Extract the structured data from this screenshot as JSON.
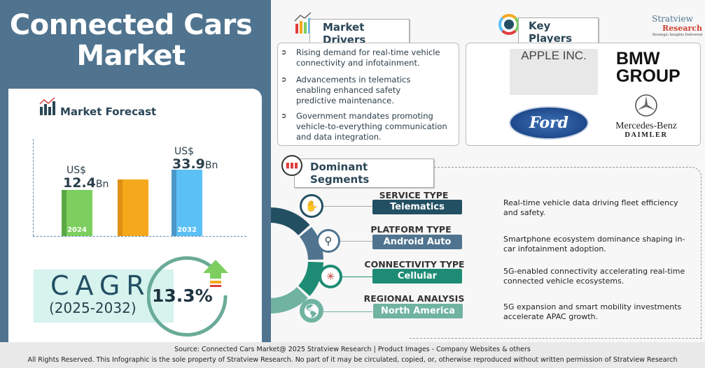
{
  "title": {
    "line1": "Connected Cars",
    "line2": "Market"
  },
  "forecast": {
    "heading": "Market Forecast",
    "chart_data": {
      "type": "bar",
      "categories": [
        "2024",
        "",
        "2032"
      ],
      "values": [
        12.4,
        null,
        33.9
      ],
      "unit_prefix": "US$",
      "unit_suffix": "Bn",
      "colors": [
        "#7ccf5e",
        "#f5a81c",
        "#5bc0f5"
      ]
    },
    "bar1": {
      "prefix": "US$",
      "value": "12.4",
      "suffix": "Bn",
      "year": "2024"
    },
    "bar3": {
      "prefix": "US$",
      "value": "33.9",
      "suffix": "Bn",
      "year": "2032"
    }
  },
  "cagr": {
    "label": "CAGR",
    "period": "(2025-2032)",
    "value": "13.3%"
  },
  "drivers": {
    "heading": "Market Drivers",
    "items": [
      "Rising demand for real-time vehicle connectivity and infotainment.",
      "Advancements in telematics enabling enhanced safety predictive maintenance.",
      "Government mandates promoting vehicle-to-everything communication and data integration."
    ]
  },
  "players": {
    "heading": "Key Players",
    "logos": {
      "apple": "APPLE INC.",
      "bmw1": "BMW",
      "bmw2": "GROUP",
      "ford": "Ford",
      "merc1": "Mercedes-Benz",
      "merc2": "DAIMLER"
    }
  },
  "brand": {
    "name1": "Stratview",
    "name2": "Research",
    "tagline": "Strategic Insights Delivered"
  },
  "segments": {
    "heading": "Dominant Segments",
    "rows": [
      {
        "heading": "SERVICE TYPE",
        "value": "Telematics",
        "desc": "Real-time vehicle data driving fleet efficiency and safety.",
        "color": "#234f63"
      },
      {
        "heading": "PLATFORM TYPE",
        "value": "Android Auto",
        "desc": "Smartphone ecosystem dominance shaping in-car infotainment adoption.",
        "color": "#50748f"
      },
      {
        "heading": "CONNECTIVITY TYPE",
        "value": "Cellular",
        "desc": "5G-enabled connectivity accelerating real-time connected vehicle ecosystems.",
        "color": "#1e8c74"
      },
      {
        "heading": "REGIONAL ANALYSIS",
        "value": "North America",
        "desc": "5G expansion and smart mobility investments accelerate APAC growth.",
        "color": "#6fb3a0"
      }
    ]
  },
  "footer": {
    "source": "Source:  Connected Cars Market@ 2025 Stratview Research | Product Images  - Company Websites & others",
    "rights": "All Rights Reserved. This Infographic is the sole property of Stratview Research. No part of it may be circulated, copied, or, otherwise reproduced without written permission of Stratview Research"
  }
}
